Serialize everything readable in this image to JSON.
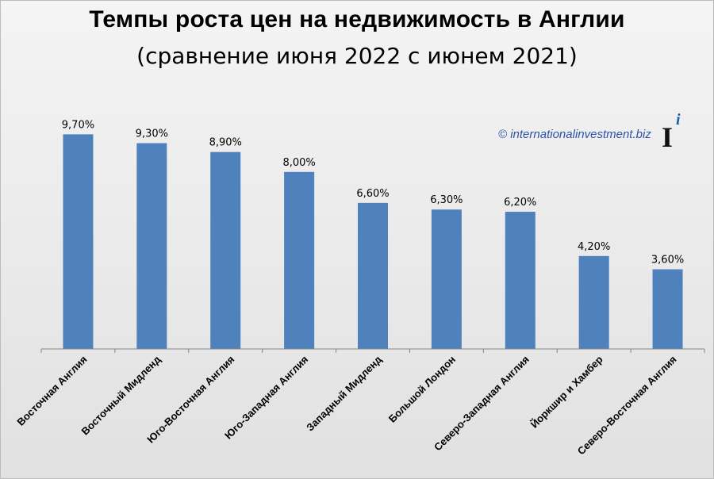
{
  "header": {
    "title": "Темпы роста цен на недвижимость в Англии",
    "subtitle": "(сравнение июня 2022 с июнем 2021)"
  },
  "watermark": {
    "copyright": "© internationalinvestment.biz",
    "logo_letters": "Ii",
    "logo_color": "#1a5fa8"
  },
  "colors": {
    "bar": "#4f81bd",
    "axis": "#868686"
  },
  "chart_data": {
    "type": "bar",
    "title": "Темпы роста цен на недвижимость в Англии",
    "subtitle": "(сравнение июня 2022 с июнем 2021)",
    "categories": [
      "Восточная Англия",
      "Восточный Мидленд",
      "Юго-Восточная Англия",
      "Юго-Западная Англия",
      "Западный Мидленд",
      "Большой Лондон",
      "Северо-Западная Англия",
      "Йоркшир и Хамбер",
      "Северо-Восточная Англия"
    ],
    "values": [
      9.7,
      9.3,
      8.9,
      8.0,
      6.6,
      6.3,
      6.2,
      4.2,
      3.6
    ],
    "data_labels": [
      "9,70%",
      "9,30%",
      "8,90%",
      "8,00%",
      "6,60%",
      "6,30%",
      "6,20%",
      "4,20%",
      "3,60%"
    ],
    "ylim": [
      0,
      10
    ],
    "grid": false,
    "legend": "none",
    "xlabel": "",
    "ylabel": ""
  }
}
